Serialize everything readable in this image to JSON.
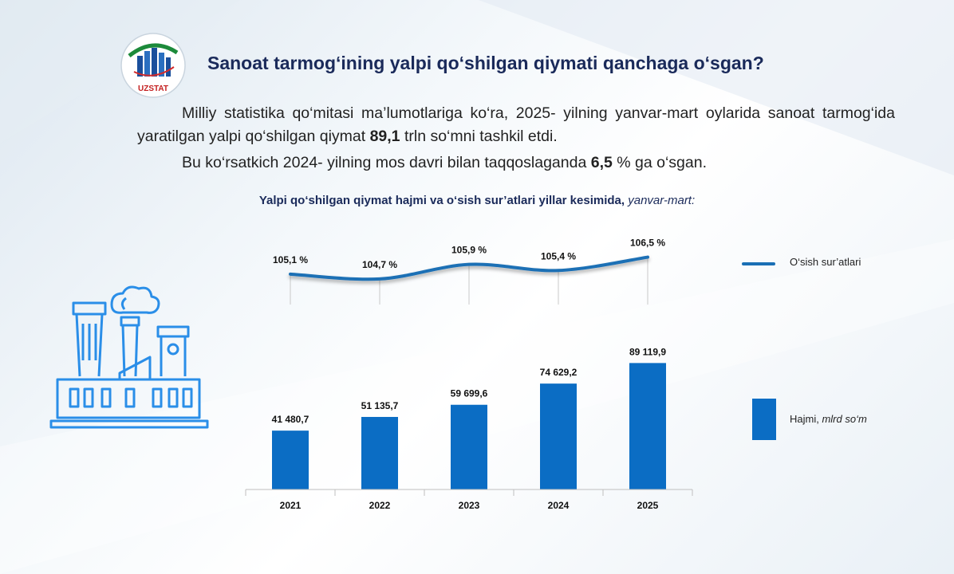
{
  "logo": {
    "text": "UZSTAT"
  },
  "title": "Sanoat tarmog‘ining yalpi qo‘shilgan qiymati qanchaga o‘sgan?",
  "paragraph1": {
    "before": "Milliy statistika qo‘mitasi ma’lumotlariga ko‘ra, 2025- yilning yanvar-mart oylarida sanoat tarmog‘ida yaratilgan yalpi qo‘shilgan qiymat ",
    "value": "89,1",
    "after": " trln so‘mni tashkil etdi."
  },
  "paragraph2": {
    "before": "Bu ko‘rsatkich 2024- yilning mos davri bilan taqqoslaganda ",
    "value": "6,5",
    "after": " % ga o‘sgan."
  },
  "chart_title": {
    "main": "Yalpi qo‘shilgan qiymat hajmi va o‘sish sur’atlari yillar kesimida,",
    "italic": " yanvar-mart:"
  },
  "legend": {
    "line_label": "O‘sish sur’atlari",
    "bar_label": "Hajmi,",
    "bar_unit": " mlrd so‘m"
  },
  "colors": {
    "bar": "#0b6dc4",
    "line": "#1a6fb5",
    "factory": "#2a8ee8"
  },
  "chart_data": {
    "type": "bar",
    "categories": [
      "2021",
      "2022",
      "2023",
      "2024",
      "2025"
    ],
    "series": [
      {
        "name": "Hajmi, mlrd so‘m",
        "type": "bar",
        "values": [
          41480.7,
          51135.7,
          59699.6,
          74629.2,
          89119.9
        ],
        "labels": [
          "41 480,7",
          "51 135,7",
          "59 699,6",
          "74 629,2",
          "89 119,9"
        ]
      },
      {
        "name": "O‘sish sur’atlari",
        "type": "line",
        "values": [
          105.1,
          104.7,
          105.9,
          105.4,
          106.5
        ],
        "labels": [
          "105,1 %",
          "104,7 %",
          "105,9 %",
          "105,4 %",
          "106,5 %"
        ]
      }
    ],
    "grid": false,
    "legend": "right"
  }
}
